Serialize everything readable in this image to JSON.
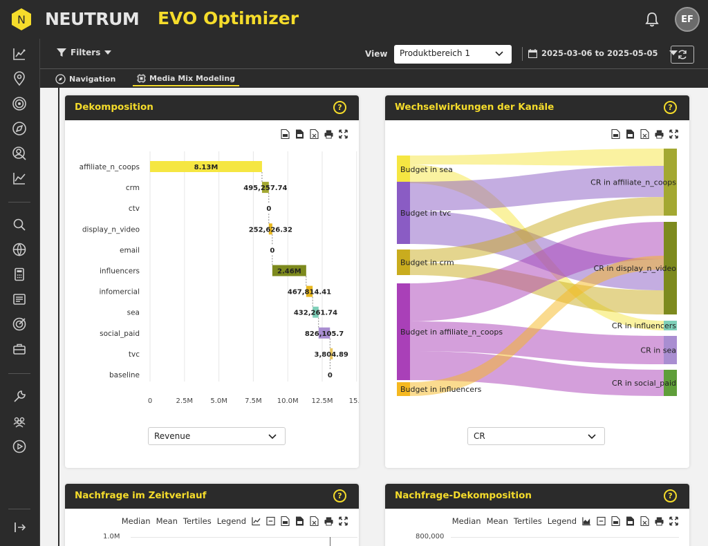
{
  "header": {
    "brand": "NEUTRUM",
    "logo_letter": "N",
    "app_title": "EVO Optimizer",
    "user_initials": "EF"
  },
  "filterbar": {
    "filters_label": "Filters",
    "view_label": "View",
    "view_value": "Produktbereich 1",
    "date_range": "2025-03-06 to 2025-05-05"
  },
  "tabs": [
    {
      "label": "Navigation"
    },
    {
      "label": "Media Mix Modeling"
    }
  ],
  "colors": {
    "accent": "#f5dc2b",
    "dark": "#2b2b2b"
  },
  "cards": {
    "decomp": {
      "title": "Dekomposition",
      "help": "?",
      "select_value": "Revenue"
    },
    "interactions": {
      "title": "Wechselwirkungen der Kanäle",
      "help": "?",
      "select_value": "CR"
    },
    "demand_time": {
      "title": "Nachfrage im Zeitverlauf",
      "help": "?",
      "tools": [
        "Median",
        "Mean",
        "Tertiles",
        "Legend"
      ],
      "y_top_label": "1.0M"
    },
    "demand_decomp": {
      "title": "Nachfrage-Dekomposition",
      "help": "?",
      "tools": [
        "Median",
        "Mean",
        "Tertiles",
        "Legend"
      ],
      "y_top_label": "800,000"
    }
  },
  "chart_data": [
    {
      "type": "bar",
      "subtype": "waterfall",
      "title": "Dekomposition",
      "categories": [
        "affiliate_n_coops",
        "crm",
        "ctv",
        "display_n_video",
        "email",
        "influencers",
        "infomercial",
        "sea",
        "social_paid",
        "tvc",
        "baseline"
      ],
      "values": [
        8130000,
        495257.74,
        0,
        252626.32,
        0,
        2460000,
        467814.41,
        432261.74,
        826105.7,
        3804.89,
        0
      ],
      "labels": [
        "8.13M",
        "495,257.74",
        "0",
        "252,626.32",
        "0",
        "2.46M",
        "467,814.41",
        "432,261.74",
        "826,105.7",
        "3,804.89",
        "0"
      ],
      "colors": [
        "#f5e642",
        "#a3a832",
        "#999999",
        "#e8b820",
        "#999999",
        "#7d8a1e",
        "#e8b820",
        "#7ecfb8",
        "#a98ed1",
        "#e8c660",
        "#999999"
      ],
      "xticks": [
        "0",
        "2.5M",
        "5.0M",
        "7.5M",
        "10.0M",
        "12.5M",
        "15..."
      ],
      "xlim": [
        0,
        15000000
      ]
    },
    {
      "type": "sankey",
      "title": "Wechselwirkungen der Kanäle",
      "sources": [
        {
          "name": "Budget in sea",
          "color": "#f5e642"
        },
        {
          "name": "Budget in tvc",
          "color": "#8a5cc4"
        },
        {
          "name": "Budget in crm",
          "color": "#c9ac1e"
        },
        {
          "name": "Budget in affiliate_n_coops",
          "color": "#a940b8"
        },
        {
          "name": "Budget in influencers",
          "color": "#f5b820"
        }
      ],
      "targets": [
        {
          "name": "CR in affiliate_n_coops",
          "color": "#a3a832"
        },
        {
          "name": "CR in display_n_video",
          "color": "#7d8a1e"
        },
        {
          "name": "CR in influencers",
          "color": "#7ecfb8"
        },
        {
          "name": "CR in sea",
          "color": "#a98ed1"
        },
        {
          "name": "CR in social_paid",
          "color": "#5f9e3a"
        }
      ]
    }
  ]
}
